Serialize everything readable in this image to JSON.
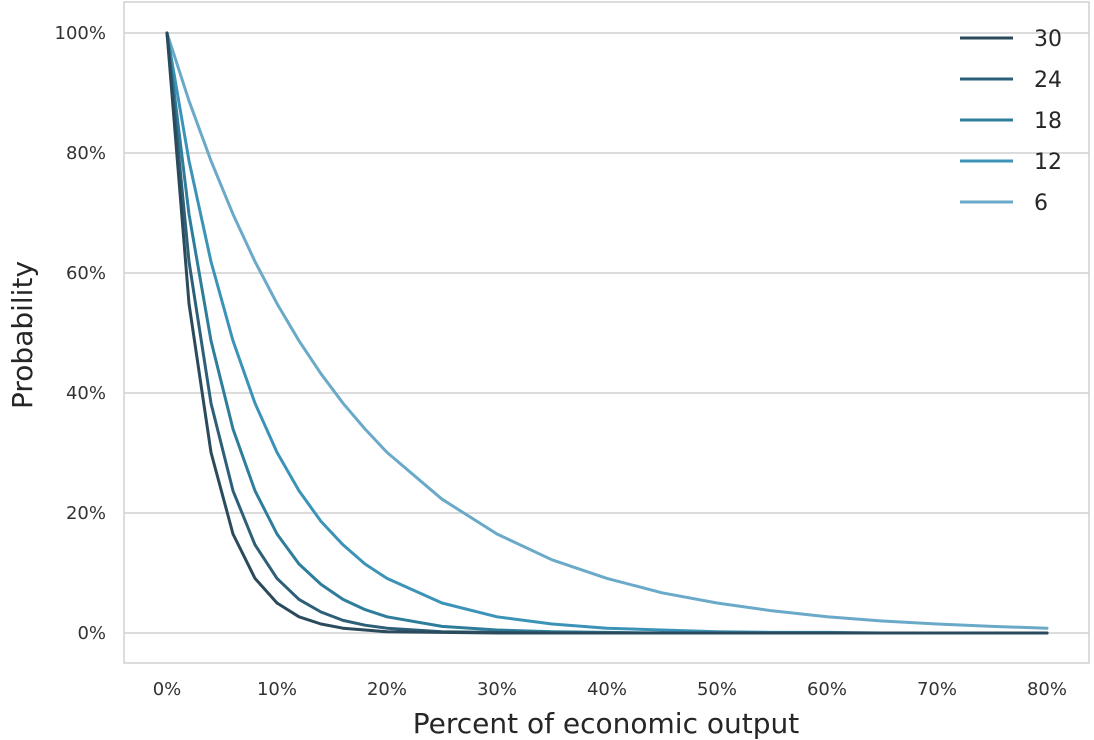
{
  "chart_data": {
    "type": "line",
    "xlabel": "Percent of economic output",
    "ylabel": "Probability",
    "xlim": [
      0,
      0.8
    ],
    "ylim": [
      0,
      1
    ],
    "x_ticks": [
      0,
      0.1,
      0.2,
      0.3,
      0.4,
      0.5,
      0.6,
      0.7,
      0.8
    ],
    "x_tick_labels": [
      "0%",
      "10%",
      "20%",
      "30%",
      "40%",
      "50%",
      "60%",
      "70%",
      "80%"
    ],
    "y_ticks": [
      0,
      0.2,
      0.4,
      0.6,
      0.8,
      1.0
    ],
    "y_tick_labels": [
      "0%",
      "20%",
      "40%",
      "60%",
      "80%",
      "100%"
    ],
    "grid": "horizontal",
    "legend_position": "top-right",
    "x": [
      0,
      0.02,
      0.04,
      0.06,
      0.08,
      0.1,
      0.12,
      0.14,
      0.16,
      0.18,
      0.2,
      0.25,
      0.3,
      0.35,
      0.4,
      0.45,
      0.5,
      0.55,
      0.6,
      0.65,
      0.7,
      0.75,
      0.8
    ],
    "series": [
      {
        "name": "30",
        "color": "#2b4a5b",
        "values": [
          1.0,
          0.549,
          0.301,
          0.165,
          0.091,
          0.05,
          0.027,
          0.015,
          0.008,
          0.005,
          0.002,
          0.001,
          0.0,
          0.0,
          0.0,
          0.0,
          0.0,
          0.0,
          0.0,
          0.0,
          0.0,
          0.0,
          0.0
        ]
      },
      {
        "name": "24",
        "color": "#2d5f78",
        "values": [
          1.0,
          0.619,
          0.383,
          0.237,
          0.147,
          0.091,
          0.056,
          0.035,
          0.021,
          0.013,
          0.008,
          0.002,
          0.001,
          0.0,
          0.0,
          0.0,
          0.0,
          0.0,
          0.0,
          0.0,
          0.0,
          0.0,
          0.0
        ]
      },
      {
        "name": "18",
        "color": "#2e7d9b",
        "values": [
          1.0,
          0.698,
          0.487,
          0.34,
          0.237,
          0.165,
          0.115,
          0.081,
          0.056,
          0.039,
          0.027,
          0.011,
          0.005,
          0.002,
          0.001,
          0.0,
          0.0,
          0.0,
          0.0,
          0.0,
          0.0,
          0.0,
          0.0
        ]
      },
      {
        "name": "12",
        "color": "#3c93b8",
        "values": [
          1.0,
          0.787,
          0.619,
          0.487,
          0.383,
          0.301,
          0.237,
          0.186,
          0.147,
          0.115,
          0.091,
          0.05,
          0.027,
          0.015,
          0.008,
          0.005,
          0.002,
          0.001,
          0.001,
          0.0,
          0.0,
          0.0,
          0.0
        ]
      },
      {
        "name": "6",
        "color": "#6aaac8",
        "values": [
          1.0,
          0.887,
          0.787,
          0.698,
          0.619,
          0.549,
          0.487,
          0.432,
          0.383,
          0.34,
          0.301,
          0.223,
          0.165,
          0.122,
          0.091,
          0.067,
          0.05,
          0.037,
          0.027,
          0.02,
          0.015,
          0.011,
          0.008
        ]
      }
    ]
  }
}
